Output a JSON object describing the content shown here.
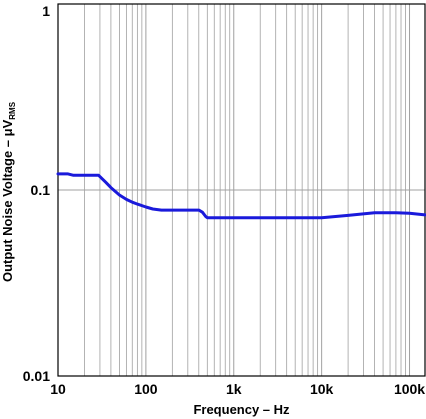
{
  "chart_data": {
    "type": "line",
    "title": "",
    "xlabel": "Frequency – Hz",
    "ylabel_main": "Output Noise Voltage – μV",
    "ylabel_sub": "RMS",
    "x_scale": "log",
    "y_scale": "log",
    "xlim": [
      10,
      150000
    ],
    "ylim": [
      0.01,
      1
    ],
    "grid": true,
    "legend": "none",
    "line_color": "#1a1adb",
    "grid_color": "#a0a0a0",
    "x_ticks": [
      {
        "value": 10,
        "label": "10"
      },
      {
        "value": 100,
        "label": "100"
      },
      {
        "value": 1000,
        "label": "1k"
      },
      {
        "value": 10000,
        "label": "10k"
      },
      {
        "value": 100000,
        "label": "100k"
      }
    ],
    "y_ticks": [
      {
        "value": 1,
        "label": "1"
      },
      {
        "value": 0.1,
        "label": "0.1"
      },
      {
        "value": 0.01,
        "label": "0.01"
      }
    ],
    "series": [
      {
        "x": [
          10,
          13,
          15,
          20,
          25,
          29,
          35,
          40,
          50,
          60,
          70,
          80,
          100,
          120,
          150,
          200,
          300,
          400,
          440,
          480,
          500,
          700,
          1000,
          2000,
          5000,
          10000,
          20000,
          40000,
          70000,
          100000,
          150000
        ],
        "y": [
          0.122,
          0.122,
          0.12,
          0.12,
          0.12,
          0.12,
          0.11,
          0.103,
          0.094,
          0.089,
          0.086,
          0.084,
          0.081,
          0.079,
          0.078,
          0.078,
          0.078,
          0.078,
          0.076,
          0.072,
          0.071,
          0.071,
          0.071,
          0.071,
          0.071,
          0.071,
          0.073,
          0.0755,
          0.0755,
          0.075,
          0.0735
        ]
      }
    ]
  }
}
